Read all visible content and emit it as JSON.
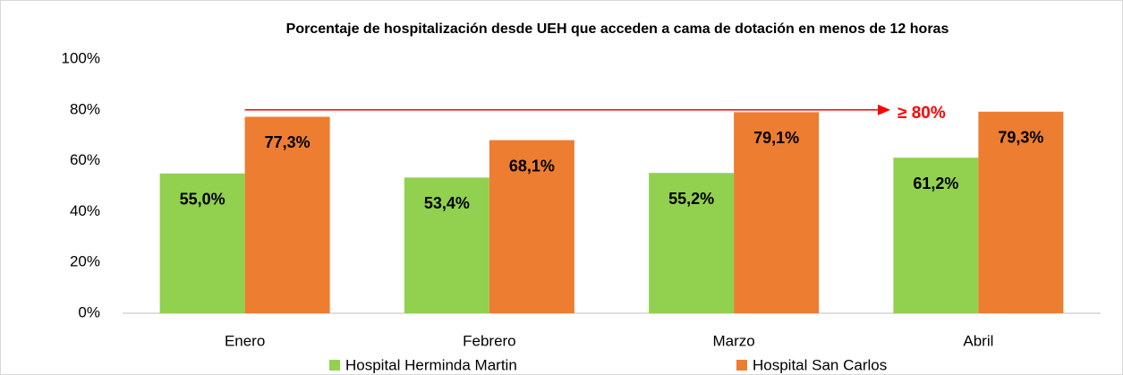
{
  "chart_data": {
    "type": "bar",
    "title": "Porcentaje de hospitalización desde UEH que acceden a cama de dotación en menos de 12 horas",
    "categories": [
      "Enero",
      "Febrero",
      "Marzo",
      "Abril"
    ],
    "series": [
      {
        "name": "Hospital Herminda Martin",
        "color": "#92d050",
        "values": [
          55.0,
          53.4,
          55.2,
          61.2
        ],
        "value_labels": [
          "55,0%",
          "53,4%",
          "55,2%",
          "61,2%"
        ]
      },
      {
        "name": "Hospital San Carlos",
        "color": "#ed7d31",
        "values": [
          77.3,
          68.1,
          79.1,
          79.3
        ],
        "value_labels": [
          "77,3%",
          "68,1%",
          "79,1%",
          "79,3%"
        ]
      }
    ],
    "ylim": [
      0,
      100
    ],
    "yticks": [
      {
        "value": 0,
        "label": "0%"
      },
      {
        "value": 20,
        "label": "20%"
      },
      {
        "value": 40,
        "label": "40%"
      },
      {
        "value": 60,
        "label": "60%"
      },
      {
        "value": 80,
        "label": "80%"
      },
      {
        "value": 100,
        "label": "100%"
      }
    ],
    "grid": false,
    "legend": "bottom",
    "annotations": [
      {
        "text": "≥ 80%",
        "value": 80,
        "color": "#ff0000"
      }
    ]
  }
}
